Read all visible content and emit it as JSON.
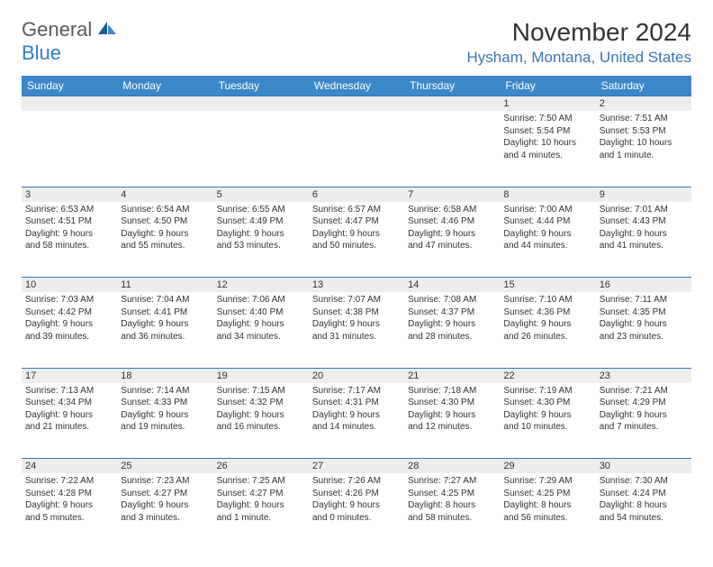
{
  "logo": {
    "general": "General",
    "blue": "Blue"
  },
  "title": "November 2024",
  "location": "Hysham, Montana, United States",
  "colors": {
    "header_bg": "#3b87c8",
    "header_text": "#ffffff",
    "border": "#3c76b0",
    "daynum_bg": "#eceded",
    "text": "#333333",
    "location": "#3c76b0",
    "logo_gray": "#5a5a5a",
    "logo_blue": "#2f7fc1"
  },
  "weekdays": [
    "Sunday",
    "Monday",
    "Tuesday",
    "Wednesday",
    "Thursday",
    "Friday",
    "Saturday"
  ],
  "weeks": [
    [
      null,
      null,
      null,
      null,
      null,
      {
        "n": "1",
        "sr": "Sunrise: 7:50 AM",
        "ss": "Sunset: 5:54 PM",
        "dl1": "Daylight: 10 hours",
        "dl2": "and 4 minutes."
      },
      {
        "n": "2",
        "sr": "Sunrise: 7:51 AM",
        "ss": "Sunset: 5:53 PM",
        "dl1": "Daylight: 10 hours",
        "dl2": "and 1 minute."
      }
    ],
    [
      {
        "n": "3",
        "sr": "Sunrise: 6:53 AM",
        "ss": "Sunset: 4:51 PM",
        "dl1": "Daylight: 9 hours",
        "dl2": "and 58 minutes."
      },
      {
        "n": "4",
        "sr": "Sunrise: 6:54 AM",
        "ss": "Sunset: 4:50 PM",
        "dl1": "Daylight: 9 hours",
        "dl2": "and 55 minutes."
      },
      {
        "n": "5",
        "sr": "Sunrise: 6:55 AM",
        "ss": "Sunset: 4:49 PM",
        "dl1": "Daylight: 9 hours",
        "dl2": "and 53 minutes."
      },
      {
        "n": "6",
        "sr": "Sunrise: 6:57 AM",
        "ss": "Sunset: 4:47 PM",
        "dl1": "Daylight: 9 hours",
        "dl2": "and 50 minutes."
      },
      {
        "n": "7",
        "sr": "Sunrise: 6:58 AM",
        "ss": "Sunset: 4:46 PM",
        "dl1": "Daylight: 9 hours",
        "dl2": "and 47 minutes."
      },
      {
        "n": "8",
        "sr": "Sunrise: 7:00 AM",
        "ss": "Sunset: 4:44 PM",
        "dl1": "Daylight: 9 hours",
        "dl2": "and 44 minutes."
      },
      {
        "n": "9",
        "sr": "Sunrise: 7:01 AM",
        "ss": "Sunset: 4:43 PM",
        "dl1": "Daylight: 9 hours",
        "dl2": "and 41 minutes."
      }
    ],
    [
      {
        "n": "10",
        "sr": "Sunrise: 7:03 AM",
        "ss": "Sunset: 4:42 PM",
        "dl1": "Daylight: 9 hours",
        "dl2": "and 39 minutes."
      },
      {
        "n": "11",
        "sr": "Sunrise: 7:04 AM",
        "ss": "Sunset: 4:41 PM",
        "dl1": "Daylight: 9 hours",
        "dl2": "and 36 minutes."
      },
      {
        "n": "12",
        "sr": "Sunrise: 7:06 AM",
        "ss": "Sunset: 4:40 PM",
        "dl1": "Daylight: 9 hours",
        "dl2": "and 34 minutes."
      },
      {
        "n": "13",
        "sr": "Sunrise: 7:07 AM",
        "ss": "Sunset: 4:38 PM",
        "dl1": "Daylight: 9 hours",
        "dl2": "and 31 minutes."
      },
      {
        "n": "14",
        "sr": "Sunrise: 7:08 AM",
        "ss": "Sunset: 4:37 PM",
        "dl1": "Daylight: 9 hours",
        "dl2": "and 28 minutes."
      },
      {
        "n": "15",
        "sr": "Sunrise: 7:10 AM",
        "ss": "Sunset: 4:36 PM",
        "dl1": "Daylight: 9 hours",
        "dl2": "and 26 minutes."
      },
      {
        "n": "16",
        "sr": "Sunrise: 7:11 AM",
        "ss": "Sunset: 4:35 PM",
        "dl1": "Daylight: 9 hours",
        "dl2": "and 23 minutes."
      }
    ],
    [
      {
        "n": "17",
        "sr": "Sunrise: 7:13 AM",
        "ss": "Sunset: 4:34 PM",
        "dl1": "Daylight: 9 hours",
        "dl2": "and 21 minutes."
      },
      {
        "n": "18",
        "sr": "Sunrise: 7:14 AM",
        "ss": "Sunset: 4:33 PM",
        "dl1": "Daylight: 9 hours",
        "dl2": "and 19 minutes."
      },
      {
        "n": "19",
        "sr": "Sunrise: 7:15 AM",
        "ss": "Sunset: 4:32 PM",
        "dl1": "Daylight: 9 hours",
        "dl2": "and 16 minutes."
      },
      {
        "n": "20",
        "sr": "Sunrise: 7:17 AM",
        "ss": "Sunset: 4:31 PM",
        "dl1": "Daylight: 9 hours",
        "dl2": "and 14 minutes."
      },
      {
        "n": "21",
        "sr": "Sunrise: 7:18 AM",
        "ss": "Sunset: 4:30 PM",
        "dl1": "Daylight: 9 hours",
        "dl2": "and 12 minutes."
      },
      {
        "n": "22",
        "sr": "Sunrise: 7:19 AM",
        "ss": "Sunset: 4:30 PM",
        "dl1": "Daylight: 9 hours",
        "dl2": "and 10 minutes."
      },
      {
        "n": "23",
        "sr": "Sunrise: 7:21 AM",
        "ss": "Sunset: 4:29 PM",
        "dl1": "Daylight: 9 hours",
        "dl2": "and 7 minutes."
      }
    ],
    [
      {
        "n": "24",
        "sr": "Sunrise: 7:22 AM",
        "ss": "Sunset: 4:28 PM",
        "dl1": "Daylight: 9 hours",
        "dl2": "and 5 minutes."
      },
      {
        "n": "25",
        "sr": "Sunrise: 7:23 AM",
        "ss": "Sunset: 4:27 PM",
        "dl1": "Daylight: 9 hours",
        "dl2": "and 3 minutes."
      },
      {
        "n": "26",
        "sr": "Sunrise: 7:25 AM",
        "ss": "Sunset: 4:27 PM",
        "dl1": "Daylight: 9 hours",
        "dl2": "and 1 minute."
      },
      {
        "n": "27",
        "sr": "Sunrise: 7:26 AM",
        "ss": "Sunset: 4:26 PM",
        "dl1": "Daylight: 9 hours",
        "dl2": "and 0 minutes."
      },
      {
        "n": "28",
        "sr": "Sunrise: 7:27 AM",
        "ss": "Sunset: 4:25 PM",
        "dl1": "Daylight: 8 hours",
        "dl2": "and 58 minutes."
      },
      {
        "n": "29",
        "sr": "Sunrise: 7:29 AM",
        "ss": "Sunset: 4:25 PM",
        "dl1": "Daylight: 8 hours",
        "dl2": "and 56 minutes."
      },
      {
        "n": "30",
        "sr": "Sunrise: 7:30 AM",
        "ss": "Sunset: 4:24 PM",
        "dl1": "Daylight: 8 hours",
        "dl2": "and 54 minutes."
      }
    ]
  ]
}
